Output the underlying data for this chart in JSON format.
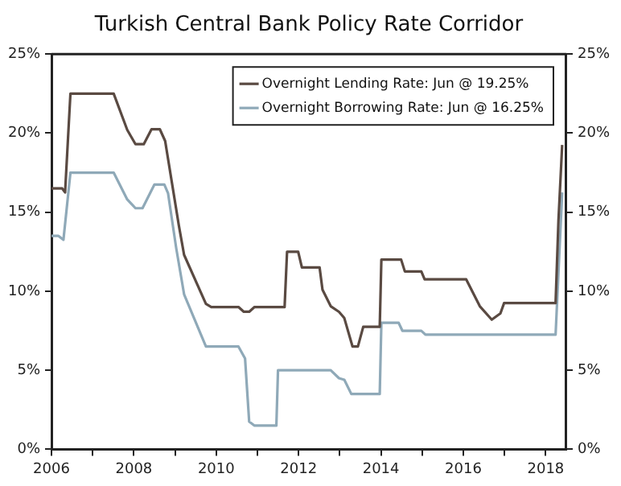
{
  "chart_data": {
    "type": "line",
    "title": "Turkish Central Bank Policy Rate Corridor",
    "xlim": [
      2006,
      2018.5
    ],
    "xticks": [
      2006,
      {
        "value": 2007,
        "label": null
      },
      2008,
      {
        "value": 2009,
        "label": null
      },
      2010,
      {
        "value": 2011,
        "label": null
      },
      2012,
      {
        "value": 2013,
        "label": null
      },
      2014,
      {
        "value": 2015,
        "label": null
      },
      2016,
      {
        "value": 2017,
        "label": null
      },
      2018
    ],
    "ylim": [
      0,
      25
    ],
    "yticks": [
      {
        "value": 0,
        "label": "0%"
      },
      {
        "value": 5,
        "label": "5%"
      },
      {
        "value": 10,
        "label": "10%"
      },
      {
        "value": 15,
        "label": "15%"
      },
      {
        "value": 20,
        "label": "20%"
      },
      {
        "value": 25,
        "label": "25%"
      }
    ],
    "y2lim": [
      0,
      25
    ],
    "y2ticks": [
      {
        "value": 0,
        "label": "0%"
      },
      {
        "value": 5,
        "label": "5%"
      },
      {
        "value": 10,
        "label": "10%"
      },
      {
        "value": 15,
        "label": "15%"
      },
      {
        "value": 20,
        "label": "20%"
      },
      {
        "value": 25,
        "label": "25%"
      }
    ],
    "grid": false,
    "legend": "top right",
    "marker": "none",
    "line_style": "solid",
    "series": [
      {
        "name": "Overnight Lending Rate: Jun @ 19.25%",
        "color": "#5a4a42",
        "x": [
          2006.0,
          2006.26,
          2006.33,
          2006.46,
          2007.51,
          2007.84,
          2008.04,
          2008.24,
          2008.43,
          2008.63,
          2008.76,
          2009.09,
          2009.22,
          2009.75,
          2009.88,
          2010.54,
          2010.67,
          2010.8,
          2010.93,
          2011.66,
          2011.72,
          2011.99,
          2012.08,
          2012.51,
          2012.58,
          2012.78,
          2012.98,
          2013.11,
          2013.31,
          2013.44,
          2013.57,
          2013.97,
          2014.01,
          2014.49,
          2014.58,
          2014.98,
          2015.06,
          2016.07,
          2016.4,
          2016.69,
          2016.9,
          2016.99,
          2018.24,
          2018.31,
          2018.4
        ],
        "values": [
          16.5,
          16.5,
          16.25,
          22.5,
          22.5,
          20.2,
          19.3,
          19.3,
          20.25,
          20.25,
          19.5,
          14.2,
          12.3,
          9.2,
          9.0,
          9.0,
          8.7,
          8.7,
          9.0,
          9.0,
          12.5,
          12.5,
          11.5,
          11.5,
          10.1,
          9.05,
          8.7,
          8.3,
          6.5,
          6.5,
          7.75,
          7.75,
          12.0,
          12.0,
          11.25,
          11.25,
          10.75,
          10.75,
          9.05,
          8.2,
          8.6,
          9.25,
          9.25,
          14.5,
          19.25
        ]
      },
      {
        "name": "Overnight Borrowing Rate: Jun @ 16.25%",
        "color": "#8fa9b8",
        "x": [
          2006.0,
          2006.17,
          2006.29,
          2006.46,
          2007.51,
          2007.84,
          2008.04,
          2008.21,
          2008.5,
          2008.74,
          2008.83,
          2009.03,
          2009.22,
          2009.75,
          2010.54,
          2010.7,
          2010.8,
          2010.93,
          2011.46,
          2011.5,
          2012.78,
          2012.98,
          2013.11,
          2013.28,
          2013.97,
          2014.01,
          2014.43,
          2014.52,
          2014.98,
          2015.08,
          2018.24,
          2018.4
        ],
        "values": [
          13.5,
          13.5,
          13.25,
          17.5,
          17.5,
          15.8,
          15.25,
          15.25,
          16.75,
          16.75,
          16.2,
          12.7,
          9.8,
          6.5,
          6.5,
          5.75,
          1.75,
          1.5,
          1.5,
          5.0,
          5.0,
          4.5,
          4.4,
          3.5,
          3.5,
          8.0,
          8.0,
          7.5,
          7.5,
          7.25,
          7.25,
          16.25
        ]
      }
    ]
  }
}
